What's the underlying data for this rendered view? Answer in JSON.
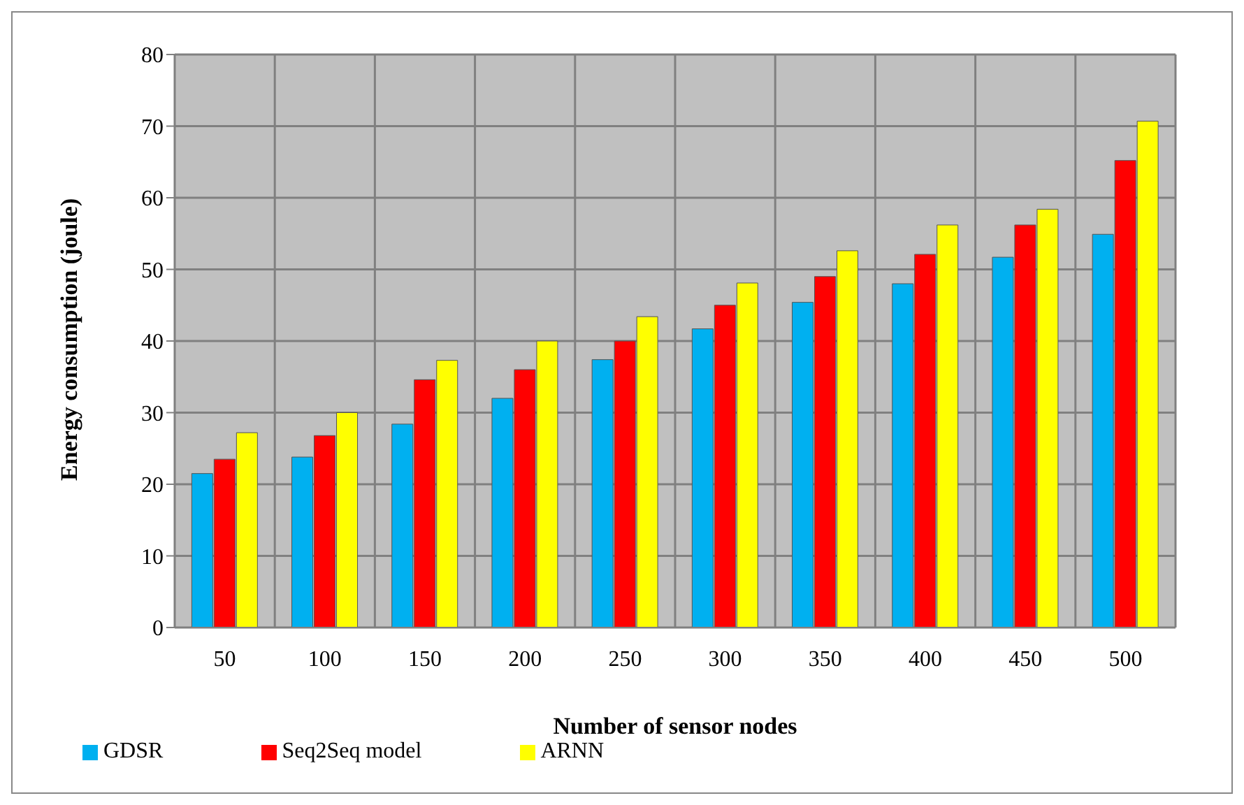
{
  "chart_data": {
    "type": "bar",
    "xlabel": "Number of sensor nodes",
    "ylabel": "Energy consumption (joule)",
    "categories": [
      "50",
      "100",
      "150",
      "200",
      "250",
      "300",
      "350",
      "400",
      "450",
      "500"
    ],
    "series": [
      {
        "name": "GDSR",
        "color": "#00b0f0",
        "values": [
          21.5,
          23.8,
          28.4,
          32,
          37.4,
          41.7,
          45.4,
          48,
          51.7,
          54.9
        ]
      },
      {
        "name": "Seq2Seq model",
        "color": "#ff0000",
        "values": [
          23.5,
          26.8,
          34.6,
          36,
          40,
          45,
          49,
          52.1,
          56.2,
          65.2
        ]
      },
      {
        "name": "ARNN",
        "color": "#ffff00",
        "values": [
          27.2,
          30,
          37.3,
          40,
          43.4,
          48.1,
          52.6,
          56.2,
          58.4,
          70.7
        ]
      }
    ],
    "ylim": [
      0,
      80
    ],
    "yticks": [
      0,
      10,
      20,
      30,
      40,
      50,
      60,
      70,
      80
    ],
    "grid": true,
    "legend": "bottom left"
  }
}
